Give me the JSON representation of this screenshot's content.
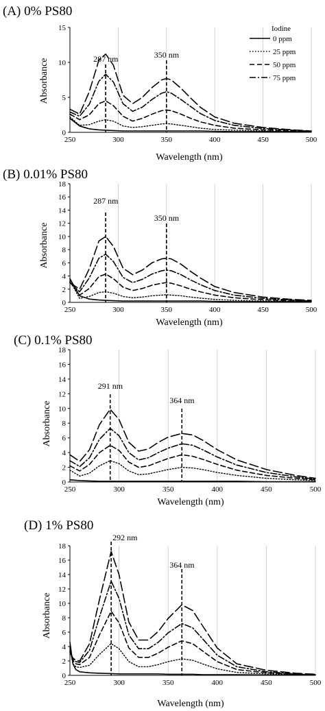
{
  "figure": {
    "legend_title": "Iodine",
    "legend_entries": [
      {
        "name": "0 ppm",
        "dash": "solid"
      },
      {
        "name": "25 ppm",
        "dash": "dotted"
      },
      {
        "name": "50 ppm",
        "dash": "dashed"
      },
      {
        "name": "75 ppm",
        "dash": "dashdot"
      }
    ],
    "legend_placement": "top-right of panel A"
  },
  "chart_data": [
    {
      "type": "line",
      "title": "(A)  0% PS80",
      "xlabel": "Wavelength  (nm)",
      "ylabel": "Absorbance",
      "xlim": [
        250,
        500
      ],
      "ylim": [
        0,
        15
      ],
      "x_ticks": [
        250,
        300,
        350,
        400,
        450,
        500
      ],
      "y_ticks": [
        0,
        5,
        10,
        15
      ],
      "grid": "vertical",
      "peaks": [
        {
          "x": 287,
          "label": "287 nm"
        },
        {
          "x": 350,
          "label": "350 nm"
        }
      ],
      "x": [
        250,
        260,
        270,
        280,
        287,
        295,
        305,
        315,
        325,
        335,
        345,
        350,
        355,
        365,
        375,
        385,
        400,
        420,
        450,
        480,
        500
      ],
      "series": [
        {
          "name": "0 ppm",
          "values": [
            2.0,
            0.9,
            0.5,
            0.35,
            0.3,
            0.25,
            0.2,
            0.2,
            0.2,
            0.2,
            0.2,
            0.2,
            0.2,
            0.2,
            0.2,
            0.2,
            0.15,
            0.1,
            0.1,
            0.1,
            0.1
          ]
        },
        {
          "name": "25 ppm",
          "values": [
            2.2,
            1.0,
            1.1,
            1.6,
            1.8,
            1.6,
            0.9,
            0.7,
            0.8,
            1.0,
            1.2,
            1.25,
            1.2,
            1.0,
            0.8,
            0.6,
            0.4,
            0.3,
            0.2,
            0.1,
            0.05
          ]
        },
        {
          "name": "50 ppm",
          "values": [
            2.6,
            1.8,
            2.5,
            4.1,
            4.5,
            3.8,
            2.3,
            1.6,
            2.0,
            2.6,
            3.1,
            3.2,
            3.1,
            2.6,
            2.0,
            1.5,
            1.0,
            0.6,
            0.35,
            0.2,
            0.1
          ]
        },
        {
          "name": "75 ppm",
          "values": [
            2.9,
            2.3,
            4.0,
            7.3,
            8.3,
            7.2,
            4.1,
            3.0,
            3.6,
            4.7,
            5.6,
            5.8,
            5.6,
            4.7,
            3.7,
            2.7,
            1.7,
            1.0,
            0.55,
            0.3,
            0.15
          ]
        },
        {
          "name": "",
          "values": [
            3.3,
            2.6,
            5.8,
            10.3,
            11.2,
            9.6,
            5.3,
            4.1,
            5.0,
            6.4,
            7.5,
            7.7,
            7.5,
            6.3,
            4.9,
            3.6,
            2.2,
            1.3,
            0.7,
            0.35,
            0.2
          ]
        }
      ]
    },
    {
      "type": "line",
      "title": "(B) 0.01% PS80",
      "xlabel": "Wavelength  (nm)",
      "ylabel": "Absorbance",
      "xlim": [
        250,
        500
      ],
      "ylim": [
        0,
        18
      ],
      "x_ticks": [
        250,
        300,
        350,
        400,
        450,
        500
      ],
      "y_ticks": [
        0,
        2,
        4,
        6,
        8,
        10,
        12,
        14,
        16,
        18
      ],
      "grid": "vertical",
      "peaks": [
        {
          "x": 287,
          "label": "287 nm"
        },
        {
          "x": 350,
          "label": "350 nm"
        }
      ],
      "x": [
        250,
        260,
        270,
        280,
        287,
        295,
        305,
        315,
        325,
        335,
        345,
        350,
        355,
        365,
        375,
        385,
        400,
        420,
        450,
        480,
        500
      ],
      "series": [
        {
          "name": "0 ppm",
          "values": [
            3.6,
            1.0,
            0.5,
            0.35,
            0.3,
            0.25,
            0.2,
            0.2,
            0.2,
            0.2,
            0.2,
            0.2,
            0.2,
            0.2,
            0.2,
            0.2,
            0.15,
            0.1,
            0.1,
            0.1,
            0.1
          ]
        },
        {
          "name": "25 ppm",
          "values": [
            3.3,
            0.6,
            0.9,
            1.5,
            1.6,
            1.4,
            0.9,
            0.7,
            0.8,
            1.0,
            1.1,
            1.15,
            1.1,
            1.0,
            0.8,
            0.65,
            0.45,
            0.3,
            0.2,
            0.15,
            0.1
          ]
        },
        {
          "name": "50 ppm",
          "values": [
            3.1,
            1.1,
            2.1,
            3.9,
            4.3,
            3.6,
            2.3,
            1.8,
            2.1,
            2.6,
            2.9,
            3.0,
            2.9,
            2.5,
            2.0,
            1.6,
            1.1,
            0.7,
            0.4,
            0.25,
            0.15
          ]
        },
        {
          "name": "75 ppm",
          "values": [
            3.0,
            1.6,
            3.7,
            6.7,
            7.3,
            6.2,
            3.8,
            3.0,
            3.5,
            4.3,
            4.8,
            4.9,
            4.8,
            4.2,
            3.4,
            2.7,
            1.8,
            1.1,
            0.6,
            0.35,
            0.2
          ]
        },
        {
          "name": "",
          "values": [
            3.0,
            2.0,
            5.1,
            9.3,
            10.0,
            8.5,
            5.2,
            4.2,
            4.9,
            6.0,
            6.6,
            6.7,
            6.6,
            5.8,
            4.7,
            3.7,
            2.4,
            1.5,
            0.8,
            0.45,
            0.3
          ]
        }
      ]
    },
    {
      "type": "line",
      "title": "(C) 0.1% PS80",
      "xlabel": "Wavelength  (nm)",
      "ylabel": "Absorbance",
      "xlim": [
        250,
        500
      ],
      "ylim": [
        0,
        18
      ],
      "x_ticks": [
        250,
        300,
        350,
        400,
        450,
        500
      ],
      "y_ticks": [
        0,
        2,
        4,
        6,
        8,
        10,
        12,
        14,
        16,
        18
      ],
      "grid": "vertical",
      "peaks": [
        {
          "x": 291,
          "label": "291 nm"
        },
        {
          "x": 364,
          "label": "364 nm"
        }
      ],
      "x": [
        250,
        260,
        270,
        280,
        291,
        300,
        310,
        320,
        330,
        340,
        350,
        364,
        375,
        385,
        400,
        420,
        450,
        480,
        500
      ],
      "series": [
        {
          "name": "0 ppm",
          "values": [
            0.3,
            0.2,
            0.15,
            0.1,
            0.1,
            0.1,
            0.1,
            0.1,
            0.1,
            0.1,
            0.1,
            0.1,
            0.1,
            0.1,
            0.1,
            0.1,
            0.05,
            0.05,
            0.05
          ]
        },
        {
          "name": "25 ppm",
          "values": [
            1.6,
            0.8,
            1.2,
            2.2,
            2.9,
            2.5,
            1.5,
            1.0,
            1.1,
            1.4,
            1.7,
            2.0,
            1.9,
            1.7,
            1.3,
            0.9,
            0.5,
            0.3,
            0.2
          ]
        },
        {
          "name": "50 ppm",
          "values": [
            2.2,
            1.5,
            2.4,
            4.0,
            5.0,
            4.3,
            2.7,
            2.0,
            2.2,
            2.7,
            3.2,
            3.7,
            3.5,
            3.1,
            2.4,
            1.6,
            0.9,
            0.5,
            0.3
          ]
        },
        {
          "name": "75 ppm",
          "values": [
            2.9,
            2.1,
            3.3,
            5.8,
            7.3,
            6.3,
            4.0,
            3.0,
            3.3,
            4.0,
            4.6,
            5.2,
            5.0,
            4.4,
            3.4,
            2.3,
            1.3,
            0.7,
            0.4
          ]
        },
        {
          "name": "",
          "values": [
            3.7,
            2.8,
            4.4,
            7.8,
            9.9,
            8.5,
            5.4,
            4.2,
            4.5,
            5.4,
            6.1,
            6.6,
            6.4,
            5.7,
            4.4,
            3.0,
            1.7,
            0.9,
            0.5
          ]
        }
      ]
    },
    {
      "type": "line",
      "title": "(D) 1% PS80",
      "xlabel": "Wavelength  (nm)",
      "ylabel": "Absorbance",
      "xlim": [
        250,
        500
      ],
      "ylim": [
        0,
        18
      ],
      "x_ticks": [
        250,
        300,
        350,
        400,
        450,
        500
      ],
      "y_ticks": [
        0,
        2,
        4,
        6,
        8,
        10,
        12,
        14,
        16,
        18
      ],
      "grid": "vertical",
      "peaks": [
        {
          "x": 292,
          "label": "292 nm"
        },
        {
          "x": 364,
          "label": "364 nm"
        }
      ],
      "x": [
        250,
        253,
        256,
        260,
        270,
        280,
        292,
        300,
        310,
        320,
        330,
        340,
        350,
        364,
        375,
        385,
        400,
        420,
        450,
        480,
        500
      ],
      "series": [
        {
          "name": "0 ppm",
          "values": [
            4.6,
            1.6,
            0.8,
            0.5,
            0.35,
            0.3,
            0.25,
            0.2,
            0.2,
            0.2,
            0.2,
            0.2,
            0.15,
            0.15,
            0.15,
            0.1,
            0.1,
            0.1,
            0.05,
            0.05,
            0.05
          ]
        },
        {
          "name": "25 ppm",
          "values": [
            3.8,
            1.6,
            1.2,
            1.1,
            1.4,
            2.9,
            4.4,
            3.7,
            1.9,
            1.2,
            1.2,
            1.5,
            1.9,
            2.3,
            2.1,
            1.6,
            0.9,
            0.4,
            0.2,
            0.1,
            0.05
          ]
        },
        {
          "name": "50 ppm",
          "values": [
            3.5,
            2.0,
            1.6,
            1.5,
            2.5,
            5.6,
            8.9,
            7.3,
            3.8,
            2.5,
            2.5,
            3.1,
            3.9,
            4.8,
            4.4,
            3.4,
            1.9,
            0.8,
            0.35,
            0.15,
            0.1
          ]
        },
        {
          "name": "75 ppm",
          "values": [
            3.3,
            2.2,
            1.9,
            1.8,
            3.5,
            8.1,
            13.1,
            10.7,
            5.6,
            3.7,
            3.7,
            4.6,
            5.9,
            7.2,
            6.6,
            5.1,
            2.8,
            1.2,
            0.5,
            0.2,
            0.1
          ]
        },
        {
          "name": "",
          "values": [
            3.2,
            2.4,
            2.1,
            2.0,
            4.4,
            10.5,
            17.2,
            14.0,
            7.4,
            4.9,
            4.9,
            6.1,
            7.9,
            9.8,
            9.0,
            6.9,
            3.8,
            1.6,
            0.7,
            0.3,
            0.15
          ]
        }
      ]
    }
  ]
}
